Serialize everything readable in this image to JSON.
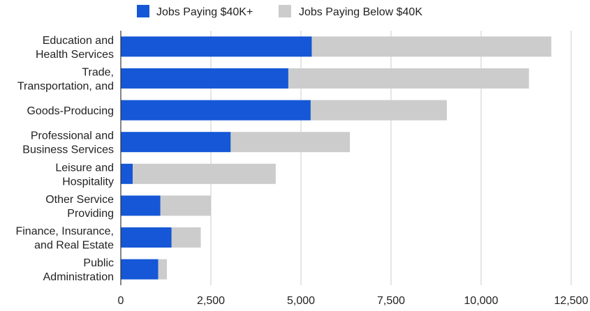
{
  "chart_data": {
    "type": "bar",
    "orientation": "horizontal",
    "stacked": true,
    "categories": [
      [
        "Education and",
        "Health Services"
      ],
      [
        "Trade,",
        "Transportation, and"
      ],
      [
        "Goods-Producing"
      ],
      [
        "Professional and",
        "Business Services"
      ],
      [
        "Leisure and",
        "Hospitality"
      ],
      [
        "Other Service",
        "Providing"
      ],
      [
        "Finance, Insurance,",
        "and Real Estate"
      ],
      [
        "Public",
        "Administration"
      ]
    ],
    "series": [
      {
        "name": "Jobs Paying $40K+",
        "color": "#1557d6",
        "values": [
          5300,
          4650,
          5270,
          3050,
          330,
          1100,
          1410,
          1040
        ]
      },
      {
        "name": "Jobs Paying Below $40K",
        "color": "#cccccc",
        "values": [
          6650,
          6680,
          3780,
          3310,
          3970,
          1390,
          810,
          240
        ]
      }
    ],
    "xlim": [
      0,
      12500
    ],
    "xticks": [
      0,
      2500,
      5000,
      7500,
      10000,
      12500
    ],
    "xtick_labels": [
      "0",
      "2,500",
      "5,000",
      "7,500",
      "10,000",
      "12,500"
    ],
    "grid": true,
    "legend": "top"
  }
}
